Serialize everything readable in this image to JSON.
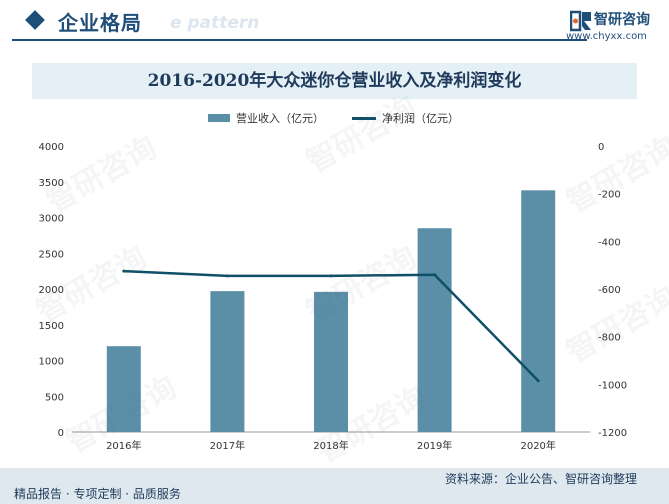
{
  "header": {
    "section_title": "企业格局",
    "watermark_text": "e pattern",
    "brand_name": "智研咨询",
    "brand_url": "www.chyxx.com"
  },
  "watermark": {
    "text": "智研咨询"
  },
  "chart_data": {
    "type": "bar",
    "title": "2016-2020年大众迷你仓营业收入及净利润变化",
    "categories": [
      "2016年",
      "2017年",
      "2018年",
      "2019年",
      "2020年"
    ],
    "series": [
      {
        "name": "营业收入（亿元）",
        "type": "bar",
        "axis": "left",
        "values": [
          1200,
          1970,
          1960,
          2850,
          3380
        ]
      },
      {
        "name": "净利润（亿元）",
        "type": "line",
        "axis": "right",
        "values": [
          -525,
          -545,
          -545,
          -540,
          -985
        ]
      }
    ],
    "y_left": {
      "ylim": [
        0,
        4000
      ],
      "ticks": [
        0,
        500,
        1000,
        1500,
        2000,
        2500,
        3000,
        3500,
        4000
      ]
    },
    "y_right": {
      "ylim": [
        -1200,
        0
      ],
      "ticks": [
        0,
        -200,
        -400,
        -600,
        -800,
        -1000,
        -1200
      ]
    },
    "legend_position": "top",
    "grid": false,
    "colors": {
      "bar": "#5b8fa8",
      "line": "#0f5068",
      "axis": "#999999"
    }
  },
  "footer": {
    "source": "资料来源：企业公告、智研咨询整理",
    "tagline": "精品报告 · 专项定制 · 品质服务"
  }
}
